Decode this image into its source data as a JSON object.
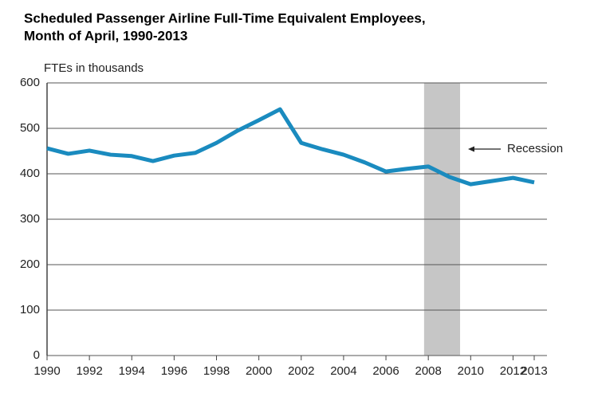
{
  "chart_data": {
    "type": "line",
    "title": [
      "Scheduled Passenger Airline Full-Time Equivalent Employees,",
      "Month of April, 1990-2013"
    ],
    "y_label": "FTEs in thousands",
    "x": [
      1990,
      1991,
      1992,
      1993,
      1994,
      1995,
      1996,
      1997,
      1998,
      1999,
      2000,
      2001,
      2002,
      2003,
      2004,
      2005,
      2006,
      2007,
      2008,
      2009,
      2010,
      2011,
      2012,
      2013
    ],
    "series": [
      {
        "color": "#1a8bbf",
        "values": [
          456,
          444,
          451,
          442,
          439,
          428,
          440,
          446,
          468,
          495,
          518,
          542,
          468,
          454,
          442,
          425,
          405,
          411,
          416,
          393,
          377,
          384,
          391,
          381
        ]
      }
    ],
    "xlim": [
      1990,
      2013
    ],
    "xticks": [
      1990,
      1992,
      1994,
      1996,
      1998,
      2000,
      2002,
      2004,
      2006,
      2008,
      2010,
      2012,
      2013
    ],
    "ylim": [
      0,
      600
    ],
    "yticks": [
      0,
      100,
      200,
      300,
      400,
      500,
      600
    ],
    "grid": true,
    "recession": {
      "start": 2007.8,
      "end": 2009.5,
      "label": "Recession",
      "color": "#c6c6c6"
    }
  }
}
